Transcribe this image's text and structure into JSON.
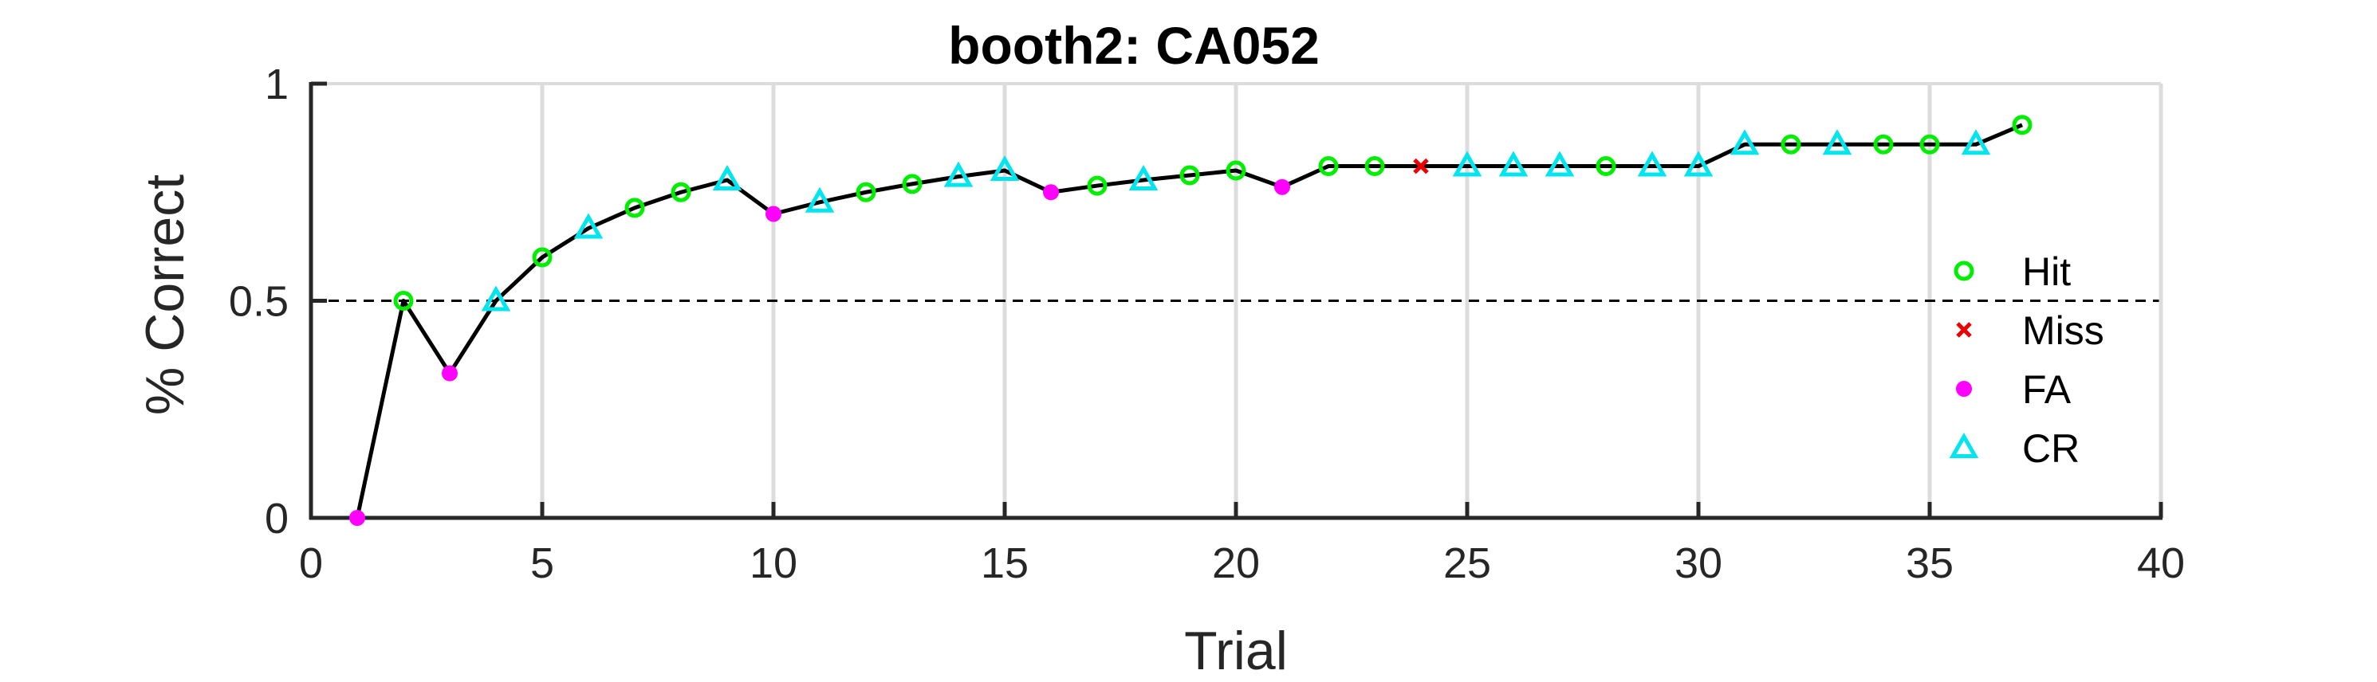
{
  "chart_data": {
    "type": "line",
    "title": "booth2: CA052",
    "xlabel": "Trial",
    "ylabel": "% Correct",
    "xlim": [
      0,
      40
    ],
    "ylim": [
      0,
      1
    ],
    "xticks": [
      0,
      5,
      10,
      15,
      20,
      25,
      30,
      35,
      40
    ],
    "xtick_labels": [
      "0",
      "5",
      "10",
      "15",
      "20",
      "25",
      "30",
      "35",
      "40"
    ],
    "yticks": [
      0,
      0.5,
      1
    ],
    "ytick_labels": [
      "0",
      "0.5",
      "1"
    ],
    "grid": "vertical",
    "reference_line": {
      "y": 0.5,
      "style": "dashed"
    },
    "legend_position": "right",
    "line_color": "#000000",
    "categories": [
      "Hit",
      "Miss",
      "FA",
      "CR"
    ],
    "category_styles": {
      "Hit": {
        "marker": "circle-open",
        "color": "#00ee00"
      },
      "Miss": {
        "marker": "x",
        "color": "#ee0000"
      },
      "FA": {
        "marker": "circle-filled",
        "color": "#ff00ff"
      },
      "CR": {
        "marker": "triangle-open",
        "color": "#00e5ee"
      }
    },
    "series": [
      {
        "values": [
          {
            "x": 1,
            "y": 0.0,
            "outcome": "FA"
          },
          {
            "x": 2,
            "y": 0.5,
            "outcome": "Hit"
          },
          {
            "x": 3,
            "y": 0.333,
            "outcome": "FA"
          },
          {
            "x": 4,
            "y": 0.5,
            "outcome": "CR"
          },
          {
            "x": 5,
            "y": 0.6,
            "outcome": "Hit"
          },
          {
            "x": 6,
            "y": 0.667,
            "outcome": "CR"
          },
          {
            "x": 7,
            "y": 0.714,
            "outcome": "Hit"
          },
          {
            "x": 8,
            "y": 0.75,
            "outcome": "Hit"
          },
          {
            "x": 9,
            "y": 0.778,
            "outcome": "CR"
          },
          {
            "x": 10,
            "y": 0.7,
            "outcome": "FA"
          },
          {
            "x": 11,
            "y": 0.727,
            "outcome": "CR"
          },
          {
            "x": 12,
            "y": 0.75,
            "outcome": "Hit"
          },
          {
            "x": 13,
            "y": 0.769,
            "outcome": "Hit"
          },
          {
            "x": 14,
            "y": 0.786,
            "outcome": "CR"
          },
          {
            "x": 15,
            "y": 0.8,
            "outcome": "CR"
          },
          {
            "x": 16,
            "y": 0.75,
            "outcome": "FA"
          },
          {
            "x": 17,
            "y": 0.765,
            "outcome": "Hit"
          },
          {
            "x": 18,
            "y": 0.778,
            "outcome": "CR"
          },
          {
            "x": 19,
            "y": 0.789,
            "outcome": "Hit"
          },
          {
            "x": 20,
            "y": 0.8,
            "outcome": "Hit"
          },
          {
            "x": 21,
            "y": 0.762,
            "outcome": "FA"
          },
          {
            "x": 22,
            "y": 0.81,
            "outcome": "Hit"
          },
          {
            "x": 23,
            "y": 0.81,
            "outcome": "Hit"
          },
          {
            "x": 24,
            "y": 0.81,
            "outcome": "Miss"
          },
          {
            "x": 25,
            "y": 0.81,
            "outcome": "CR"
          },
          {
            "x": 26,
            "y": 0.81,
            "outcome": "CR"
          },
          {
            "x": 27,
            "y": 0.81,
            "outcome": "CR"
          },
          {
            "x": 28,
            "y": 0.81,
            "outcome": "Hit"
          },
          {
            "x": 29,
            "y": 0.81,
            "outcome": "CR"
          },
          {
            "x": 30,
            "y": 0.81,
            "outcome": "CR"
          },
          {
            "x": 31,
            "y": 0.86,
            "outcome": "CR"
          },
          {
            "x": 32,
            "y": 0.86,
            "outcome": "Hit"
          },
          {
            "x": 33,
            "y": 0.86,
            "outcome": "CR"
          },
          {
            "x": 34,
            "y": 0.86,
            "outcome": "Hit"
          },
          {
            "x": 35,
            "y": 0.86,
            "outcome": "Hit"
          },
          {
            "x": 36,
            "y": 0.86,
            "outcome": "CR"
          },
          {
            "x": 37,
            "y": 0.905,
            "outcome": "Hit"
          }
        ]
      }
    ]
  }
}
